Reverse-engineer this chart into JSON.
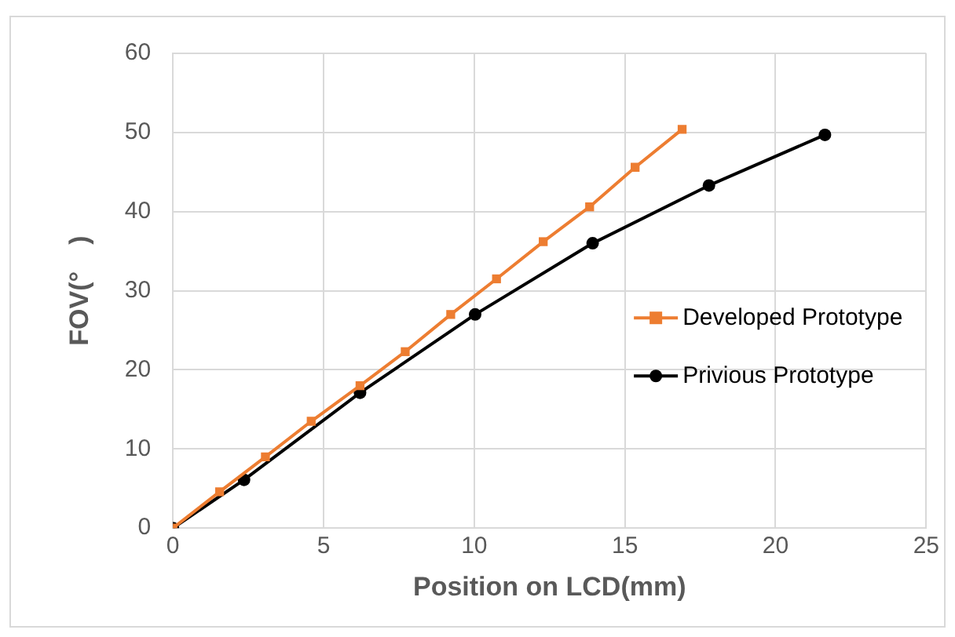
{
  "chart_data": {
    "type": "line",
    "xlabel": "Position on LCD(mm)",
    "ylabel": "FOV(°　)",
    "xlim": [
      0,
      25
    ],
    "xticks": [
      0,
      5,
      10,
      15,
      20,
      25
    ],
    "ylim": [
      0,
      60
    ],
    "yticks": [
      0,
      10,
      20,
      30,
      40,
      50,
      60
    ],
    "grid": true,
    "legend": "right",
    "series": [
      {
        "name": "Developed Prototype",
        "color": "#ed7d31",
        "marker": "square",
        "x": [
          0,
          1.55,
          3.07,
          4.59,
          6.21,
          7.71,
          9.22,
          10.74,
          12.29,
          13.83,
          15.34,
          16.9
        ],
        "values": [
          0,
          4.6,
          9.0,
          13.5,
          18.0,
          22.3,
          27.0,
          31.5,
          36.2,
          40.6,
          45.6,
          50.4
        ]
      },
      {
        "name": "Privious Prototype",
        "color": "#000000",
        "marker": "circle",
        "x": [
          0,
          2.36,
          6.21,
          10.03,
          13.93,
          17.79,
          21.64
        ],
        "values": [
          0,
          6.1,
          17.1,
          27.0,
          36.0,
          43.3,
          49.7
        ]
      }
    ]
  }
}
